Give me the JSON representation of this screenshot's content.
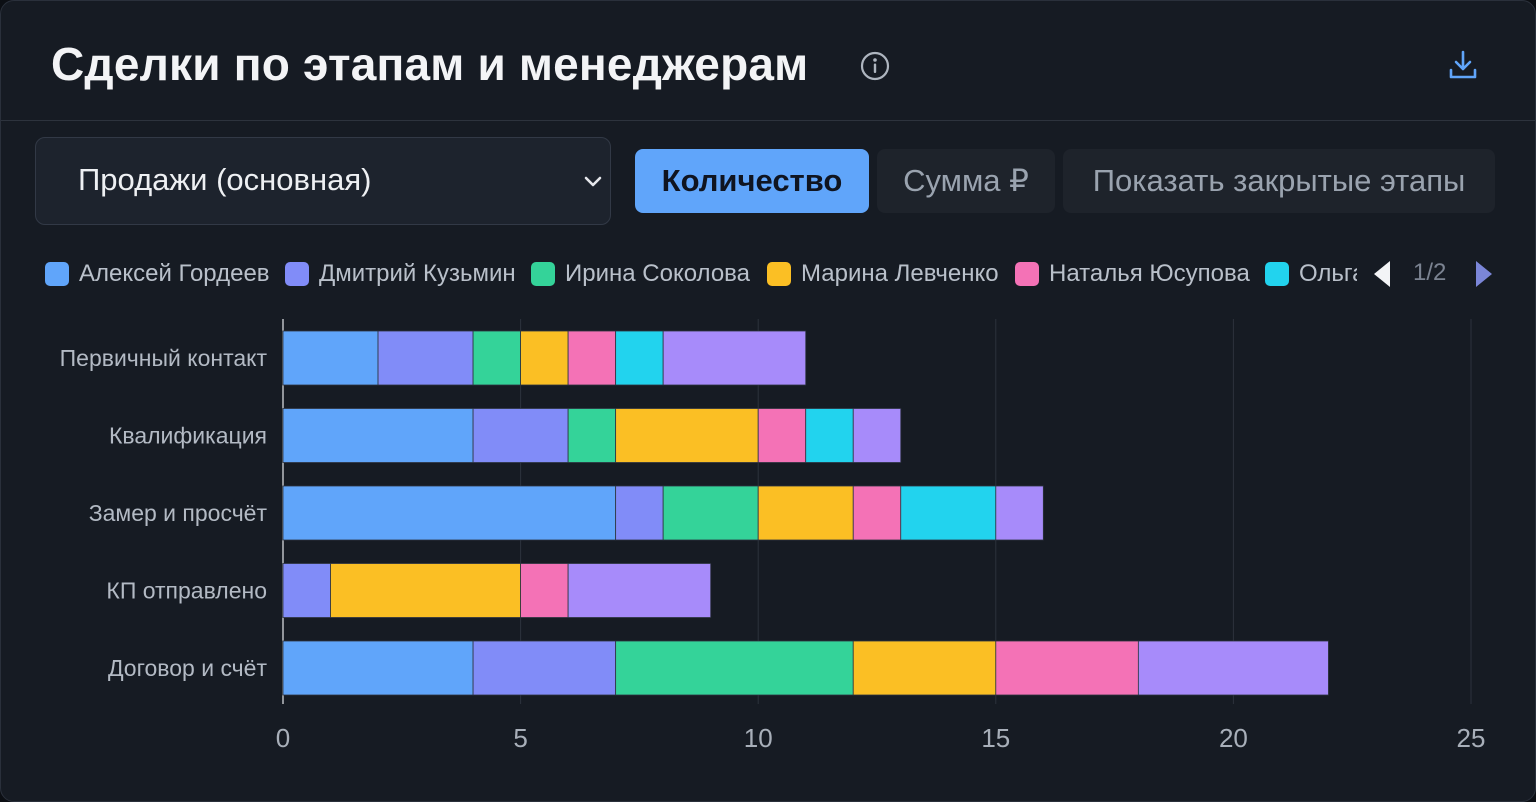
{
  "header": {
    "title": "Сделки по этапам и менеджерам"
  },
  "icons": {
    "info": "info-icon",
    "download": "download-icon",
    "dropdown": "chevron-down-icon",
    "prev": "chevron-left-icon",
    "next": "chevron-right-icon"
  },
  "filters": {
    "pipeline_value": "Продажи (основная)",
    "mode_buttons": [
      {
        "label": "Количество",
        "active": true
      },
      {
        "label": "Сумма ₽",
        "active": false
      }
    ],
    "closed_stages_label": "Показать закрытые этапы"
  },
  "legend": {
    "page": "1/2",
    "visible_count": 6
  },
  "colors": {
    "accent": "#60a5fa",
    "series": [
      "#60a5fa",
      "#818cf8",
      "#34d399",
      "#fbbf24",
      "#f472b6",
      "#22d3ee",
      "#a78bfa"
    ]
  },
  "chart_data": {
    "type": "bar",
    "orientation": "horizontal",
    "stacked": true,
    "categories": [
      "Первичный контакт",
      "Квалификация",
      "Замер и просчёт",
      "КП отправлено",
      "Договор и счёт"
    ],
    "series": [
      {
        "name": "Алексей Гордеев",
        "color": "#60a5fa",
        "values": [
          2,
          4,
          7,
          0,
          4
        ]
      },
      {
        "name": "Дмитрий Кузьмин",
        "color": "#818cf8",
        "values": [
          2,
          2,
          1,
          1,
          3
        ]
      },
      {
        "name": "Ирина Соколова",
        "color": "#34d399",
        "values": [
          1,
          1,
          2,
          0,
          5
        ]
      },
      {
        "name": "Марина Левченко",
        "color": "#fbbf24",
        "values": [
          1,
          3,
          2,
          4,
          3
        ]
      },
      {
        "name": "Наталья Юсупова",
        "color": "#f472b6",
        "values": [
          1,
          1,
          1,
          1,
          3
        ]
      },
      {
        "name": "Ольга",
        "color": "#22d3ee",
        "values": [
          1,
          1,
          2,
          0,
          0
        ]
      },
      {
        "color": "#a78bfa",
        "values": [
          3,
          1,
          1,
          3,
          4
        ]
      }
    ],
    "xlim": [
      0,
      25
    ],
    "xticks": [
      0,
      5,
      10,
      15,
      20,
      25
    ],
    "grid": true,
    "legend_position": "top"
  }
}
